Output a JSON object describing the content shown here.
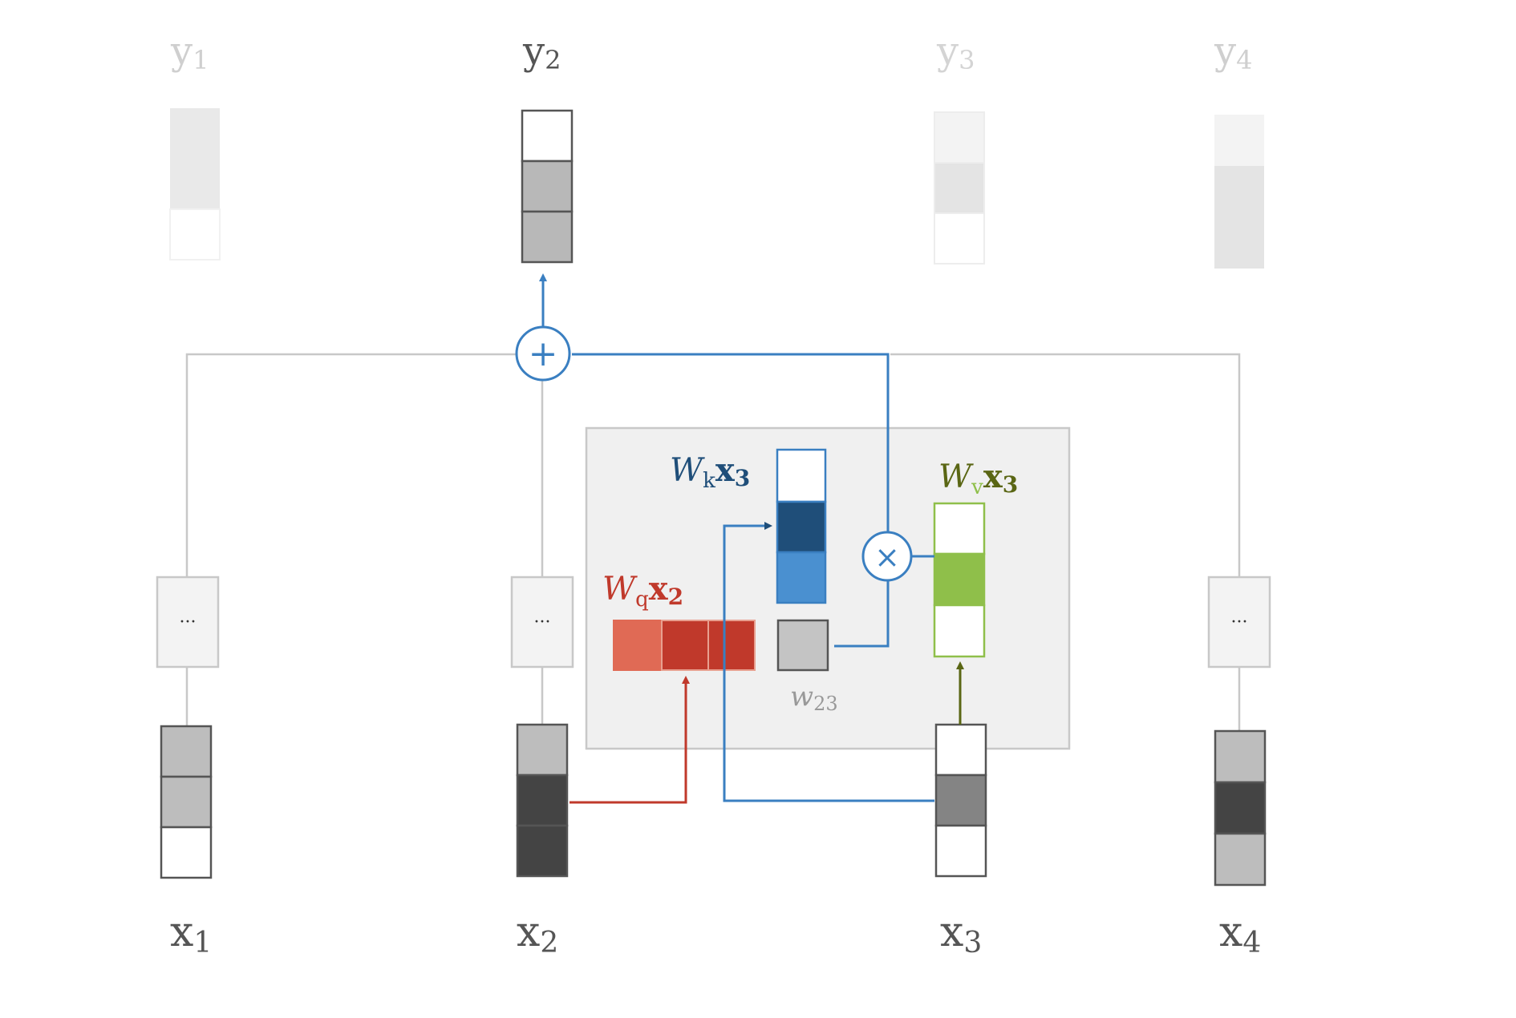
{
  "labels": {
    "outputs": [
      {
        "var": "y",
        "sub": "1"
      },
      {
        "var": "y",
        "sub": "2"
      },
      {
        "var": "y",
        "sub": "3"
      },
      {
        "var": "y",
        "sub": "4"
      }
    ],
    "inputs": [
      {
        "var": "x",
        "sub": "1"
      },
      {
        "var": "x",
        "sub": "2"
      },
      {
        "var": "x",
        "sub": "3"
      },
      {
        "var": "x",
        "sub": "4"
      }
    ],
    "ellipsis": "···",
    "query": {
      "w": "W",
      "sub": "q",
      "x": "x",
      "xsub": "2"
    },
    "key": {
      "w": "W",
      "sub": "k",
      "x": "x",
      "xsub": "3"
    },
    "value": {
      "w": "W",
      "sub": "v",
      "x": "x",
      "xsub": "3"
    },
    "weight": {
      "w": "w",
      "sub": "23"
    },
    "plus_symbol": "+",
    "times_symbol": "×"
  },
  "colors": {
    "red": "#c0392b",
    "blue": "#3a7fc1",
    "dark_blue": "#1f4e79",
    "green": "#8fbf4a",
    "olive": "#5a6614",
    "gray_line": "#c8c8c8",
    "panel": "#f0f0f0"
  }
}
